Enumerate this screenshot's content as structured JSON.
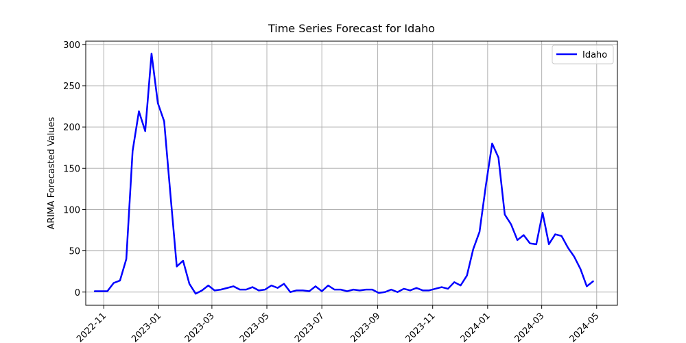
{
  "chart_data": {
    "type": "line",
    "title": "Time Series Forecast for Idaho",
    "xlabel": "",
    "ylabel": "ARIMA Forecasted Values",
    "ylim": [
      -16,
      304
    ],
    "xlim": [
      "2022-10-12",
      "2024-05-24"
    ],
    "grid": true,
    "legend": "top-right",
    "colors": {
      "series": "#0000ff",
      "grid": "#b0b0b0",
      "axis": "#000000"
    },
    "x_ticks": [
      {
        "date": "2022-11-01",
        "label": "2022-11"
      },
      {
        "date": "2023-01-01",
        "label": "2023-01"
      },
      {
        "date": "2023-03-01",
        "label": "2023-03"
      },
      {
        "date": "2023-05-01",
        "label": "2023-05"
      },
      {
        "date": "2023-07-01",
        "label": "2023-07"
      },
      {
        "date": "2023-09-01",
        "label": "2023-09"
      },
      {
        "date": "2023-11-01",
        "label": "2023-11"
      },
      {
        "date": "2024-01-01",
        "label": "2024-01"
      },
      {
        "date": "2024-03-01",
        "label": "2024-03"
      },
      {
        "date": "2024-05-01",
        "label": "2024-05"
      }
    ],
    "y_ticks": [
      0,
      50,
      100,
      150,
      200,
      250,
      300
    ],
    "series": [
      {
        "name": "Idaho",
        "x": [
          "2022-10-22",
          "2022-10-29",
          "2022-11-05",
          "2022-11-12",
          "2022-11-19",
          "2022-11-26",
          "2022-12-03",
          "2022-12-10",
          "2022-12-17",
          "2022-12-24",
          "2022-12-31",
          "2023-01-07",
          "2023-01-14",
          "2023-01-21",
          "2023-01-28",
          "2023-02-04",
          "2023-02-11",
          "2023-02-18",
          "2023-02-25",
          "2023-03-04",
          "2023-03-11",
          "2023-03-18",
          "2023-03-25",
          "2023-04-01",
          "2023-04-08",
          "2023-04-15",
          "2023-04-22",
          "2023-04-29",
          "2023-05-06",
          "2023-05-13",
          "2023-05-20",
          "2023-05-27",
          "2023-06-03",
          "2023-06-10",
          "2023-06-17",
          "2023-06-24",
          "2023-07-01",
          "2023-07-08",
          "2023-07-15",
          "2023-07-22",
          "2023-07-29",
          "2023-08-05",
          "2023-08-12",
          "2023-08-19",
          "2023-08-26",
          "2023-09-02",
          "2023-09-09",
          "2023-09-16",
          "2023-09-23",
          "2023-09-30",
          "2023-10-07",
          "2023-10-14",
          "2023-10-21",
          "2023-10-28",
          "2023-11-04",
          "2023-11-11",
          "2023-11-18",
          "2023-11-25",
          "2023-12-02",
          "2023-12-09",
          "2023-12-16",
          "2023-12-23",
          "2023-12-30",
          "2024-01-06",
          "2024-01-13",
          "2024-01-20",
          "2024-01-27",
          "2024-02-03",
          "2024-02-10",
          "2024-02-17",
          "2024-02-24",
          "2024-03-02",
          "2024-03-09",
          "2024-03-16",
          "2024-03-23",
          "2024-03-30",
          "2024-04-06",
          "2024-04-13",
          "2024-04-20",
          "2024-04-27"
        ],
        "y": [
          1,
          1,
          1,
          11,
          14,
          40,
          171,
          219,
          195,
          289,
          229,
          207,
          118,
          31,
          38,
          10,
          -2,
          2,
          8,
          2,
          3,
          5,
          7,
          3,
          3,
          6,
          2,
          3,
          8,
          5,
          10,
          0,
          2,
          2,
          1,
          7,
          1,
          8,
          3,
          3,
          1,
          3,
          2,
          3,
          3,
          -1,
          0,
          3,
          0,
          4,
          2,
          5,
          2,
          2,
          4,
          6,
          4,
          12,
          8,
          20,
          52,
          73,
          129,
          180,
          163,
          94,
          82,
          63,
          69,
          59,
          58,
          96,
          58,
          70,
          68,
          54,
          43,
          28,
          7,
          13
        ]
      }
    ]
  }
}
